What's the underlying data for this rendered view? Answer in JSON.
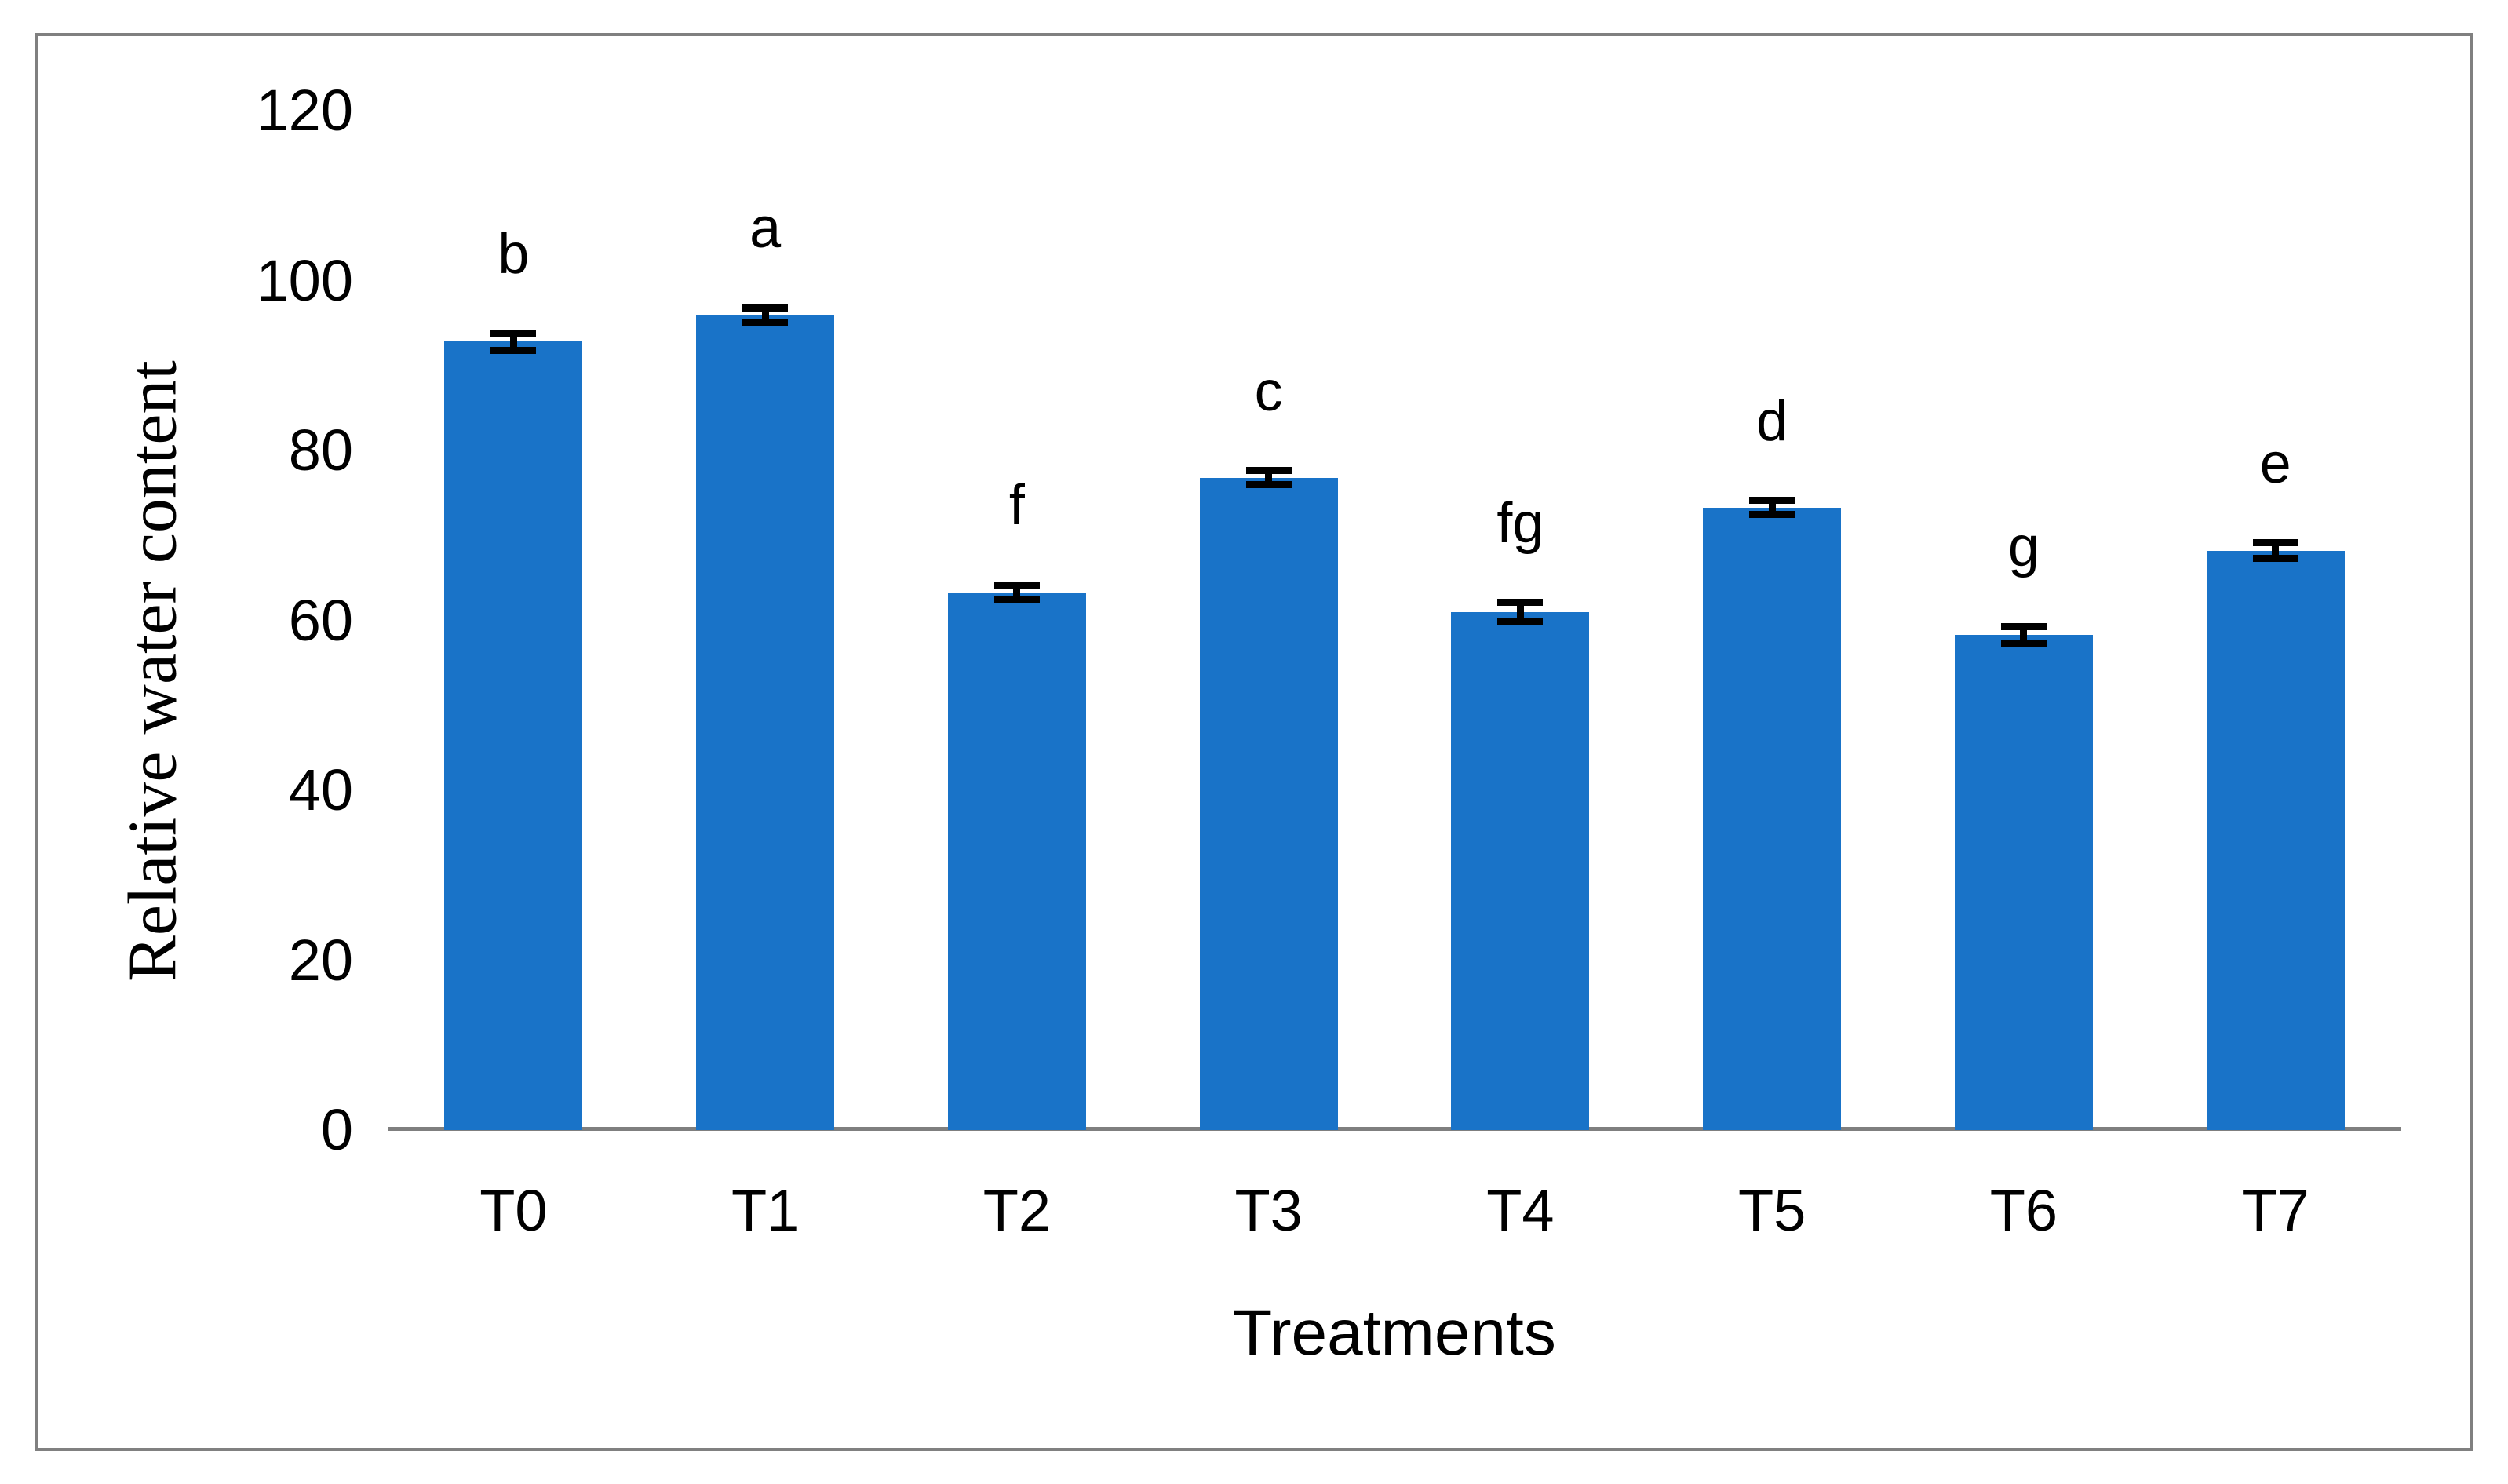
{
  "chart_data": {
    "type": "bar",
    "title": "",
    "xlabel": "Treatments",
    "ylabel": "Relative water content",
    "categories": [
      "T0",
      "T1",
      "T2",
      "T3",
      "T4",
      "T5",
      "T6",
      "T7"
    ],
    "values": [
      92.8,
      95.9,
      63.3,
      76.8,
      61.0,
      73.3,
      58.3,
      68.2
    ],
    "error_bars": [
      1.0,
      0.9,
      0.9,
      0.8,
      1.1,
      0.8,
      1.0,
      0.9
    ],
    "significance_letters": [
      "b",
      "a",
      "f",
      "c",
      "fg",
      "d",
      "g",
      "e"
    ],
    "ylim": [
      0,
      120
    ],
    "yticks": [
      0,
      20,
      40,
      60,
      80,
      100,
      120
    ],
    "grid": false,
    "legend": false,
    "bar_color": "#1973C8",
    "axis_line_color": "#7F7F7F",
    "frame_border_color": "#808080",
    "text_color": "#000000"
  }
}
